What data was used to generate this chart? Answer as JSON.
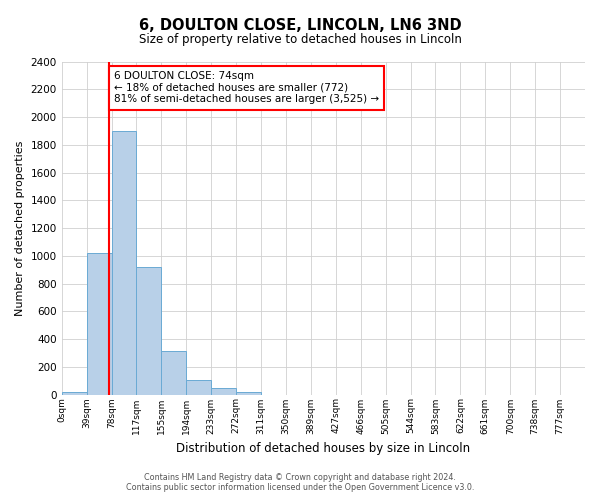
{
  "title": "6, DOULTON CLOSE, LINCOLN, LN6 3ND",
  "subtitle": "Size of property relative to detached houses in Lincoln",
  "xlabel": "Distribution of detached houses by size in Lincoln",
  "ylabel": "Number of detached properties",
  "bin_labels": [
    "0sqm",
    "39sqm",
    "78sqm",
    "117sqm",
    "155sqm",
    "194sqm",
    "233sqm",
    "272sqm",
    "311sqm",
    "350sqm",
    "389sqm",
    "427sqm",
    "466sqm",
    "505sqm",
    "544sqm",
    "583sqm",
    "622sqm",
    "661sqm",
    "700sqm",
    "738sqm",
    "777sqm"
  ],
  "bar_values": [
    20,
    1020,
    1900,
    920,
    315,
    105,
    50,
    20,
    0,
    0,
    0,
    0,
    0,
    0,
    0,
    0,
    0,
    0,
    0,
    0
  ],
  "bar_color": "#b8d0e8",
  "bar_edge_color": "#6aaad4",
  "vline_x": 74,
  "bin_width": 39,
  "ylim": [
    0,
    2400
  ],
  "yticks": [
    0,
    200,
    400,
    600,
    800,
    1000,
    1200,
    1400,
    1600,
    1800,
    2000,
    2200,
    2400
  ],
  "annotation_title": "6 DOULTON CLOSE: 74sqm",
  "annotation_line1": "← 18% of detached houses are smaller (772)",
  "annotation_line2": "81% of semi-detached houses are larger (3,525) →",
  "footer1": "Contains HM Land Registry data © Crown copyright and database right 2024.",
  "footer2": "Contains public sector information licensed under the Open Government Licence v3.0.",
  "background_color": "#ffffff",
  "grid_color": "#d0d0d0"
}
